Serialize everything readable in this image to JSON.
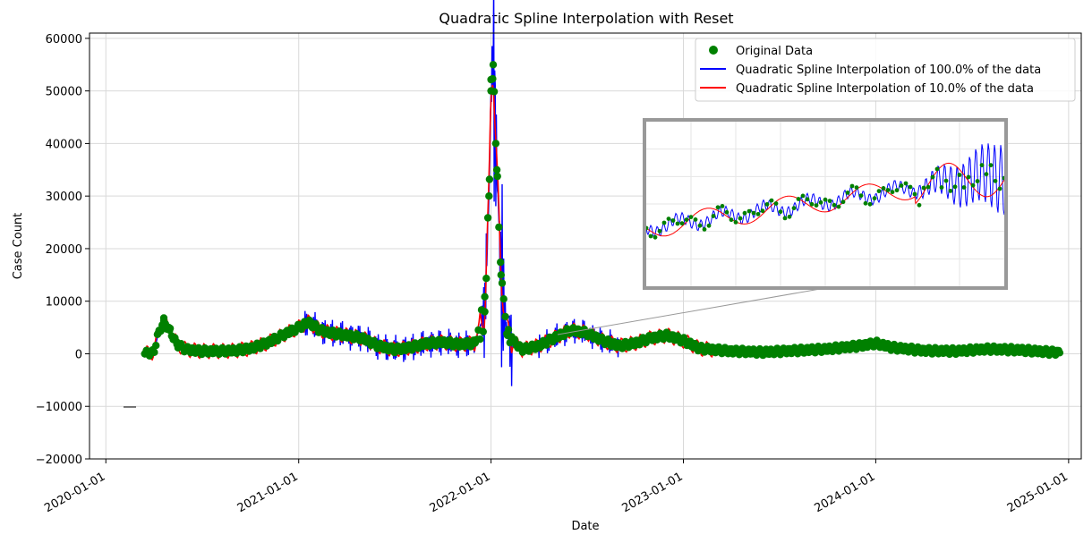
{
  "chart_data": {
    "type": "line",
    "title": "Quadratic Spline Interpolation with Reset",
    "xlabel": "Date",
    "ylabel": "Case Count",
    "ylim": [
      -20000,
      61000
    ],
    "xlim": [
      "2019-12-01",
      "2025-01-25"
    ],
    "y_ticks": [
      -20000,
      -10000,
      0,
      10000,
      20000,
      30000,
      40000,
      50000,
      60000
    ],
    "y_tick_labels": [
      "−20000",
      "−10000",
      "0",
      "10000",
      "20000",
      "30000",
      "40000",
      "50000",
      "60000"
    ],
    "x_ticks": [
      "2020-01-01",
      "2021-01-01",
      "2022-01-01",
      "2023-01-01",
      "2024-01-01",
      "2025-01-01"
    ],
    "x_tick_labels": [
      "2020-01-01",
      "2021-01-01",
      "2022-01-01",
      "2023-01-01",
      "2024-01-01",
      "2025-01-01"
    ],
    "grid": true,
    "legend_position": "top-right",
    "series": [
      {
        "name": "Original Data",
        "kind": "scatter",
        "color": "#008000"
      },
      {
        "name": "Quadratic Spline Interpolation of 100.0% of the data",
        "kind": "line",
        "color": "#0000ff"
      },
      {
        "name": "Quadratic Spline Interpolation of 10.0% of the data",
        "kind": "line",
        "color": "#ff0000"
      }
    ],
    "data_points": [
      [
        "2020-03-15",
        0
      ],
      [
        "2020-04-01",
        300
      ],
      [
        "2020-04-10",
        4000
      ],
      [
        "2020-04-20",
        6200
      ],
      [
        "2020-05-01",
        4500
      ],
      [
        "2020-05-15",
        1800
      ],
      [
        "2020-06-01",
        800
      ],
      [
        "2020-07-01",
        500
      ],
      [
        "2020-08-01",
        500
      ],
      [
        "2020-09-01",
        600
      ],
      [
        "2020-10-01",
        1000
      ],
      [
        "2020-11-01",
        2000
      ],
      [
        "2020-12-01",
        3500
      ],
      [
        "2021-01-01",
        5000
      ],
      [
        "2021-01-20",
        6000
      ],
      [
        "2021-02-10",
        4500
      ],
      [
        "2021-03-01",
        4000
      ],
      [
        "2021-04-01",
        3500
      ],
      [
        "2021-05-01",
        3000
      ],
      [
        "2021-06-01",
        1500
      ],
      [
        "2021-07-01",
        800
      ],
      [
        "2021-08-01",
        1200
      ],
      [
        "2021-09-01",
        2000
      ],
      [
        "2021-10-01",
        2200
      ],
      [
        "2021-11-01",
        1800
      ],
      [
        "2021-12-01",
        2000
      ],
      [
        "2021-12-20",
        8000
      ],
      [
        "2021-12-28",
        30000
      ],
      [
        "2022-01-01",
        50000
      ],
      [
        "2022-01-05",
        55000
      ],
      [
        "2022-01-12",
        35000
      ],
      [
        "2022-01-20",
        15000
      ],
      [
        "2022-02-01",
        3500
      ],
      [
        "2022-03-01",
        800
      ],
      [
        "2022-04-01",
        1500
      ],
      [
        "2022-05-01",
        3000
      ],
      [
        "2022-06-01",
        4500
      ],
      [
        "2022-07-01",
        4000
      ],
      [
        "2022-08-01",
        2500
      ],
      [
        "2022-09-01",
        1500
      ],
      [
        "2022-10-01",
        2000
      ],
      [
        "2022-11-01",
        3000
      ],
      [
        "2022-12-01",
        3500
      ],
      [
        "2023-01-01",
        2500
      ],
      [
        "2023-02-01",
        1000
      ],
      [
        "2023-04-01",
        500
      ],
      [
        "2023-06-01",
        300
      ],
      [
        "2023-08-01",
        600
      ],
      [
        "2023-10-01",
        900
      ],
      [
        "2023-12-01",
        1500
      ],
      [
        "2024-01-01",
        2000
      ],
      [
        "2024-02-01",
        1200
      ],
      [
        "2024-04-01",
        600
      ],
      [
        "2024-06-01",
        500
      ],
      [
        "2024-08-01",
        900
      ],
      [
        "2024-10-01",
        700
      ],
      [
        "2024-12-01",
        300
      ],
      [
        "2024-12-15",
        200
      ]
    ],
    "inset": {
      "zoom_from": [
        "2022-05-01",
        3000
      ],
      "description_legend": [
        "Original Data",
        "Quadratic Spline Interpolation of 100.0% of the data",
        "Quadratic Spline Interpolation of 10.0% of the data"
      ]
    }
  }
}
